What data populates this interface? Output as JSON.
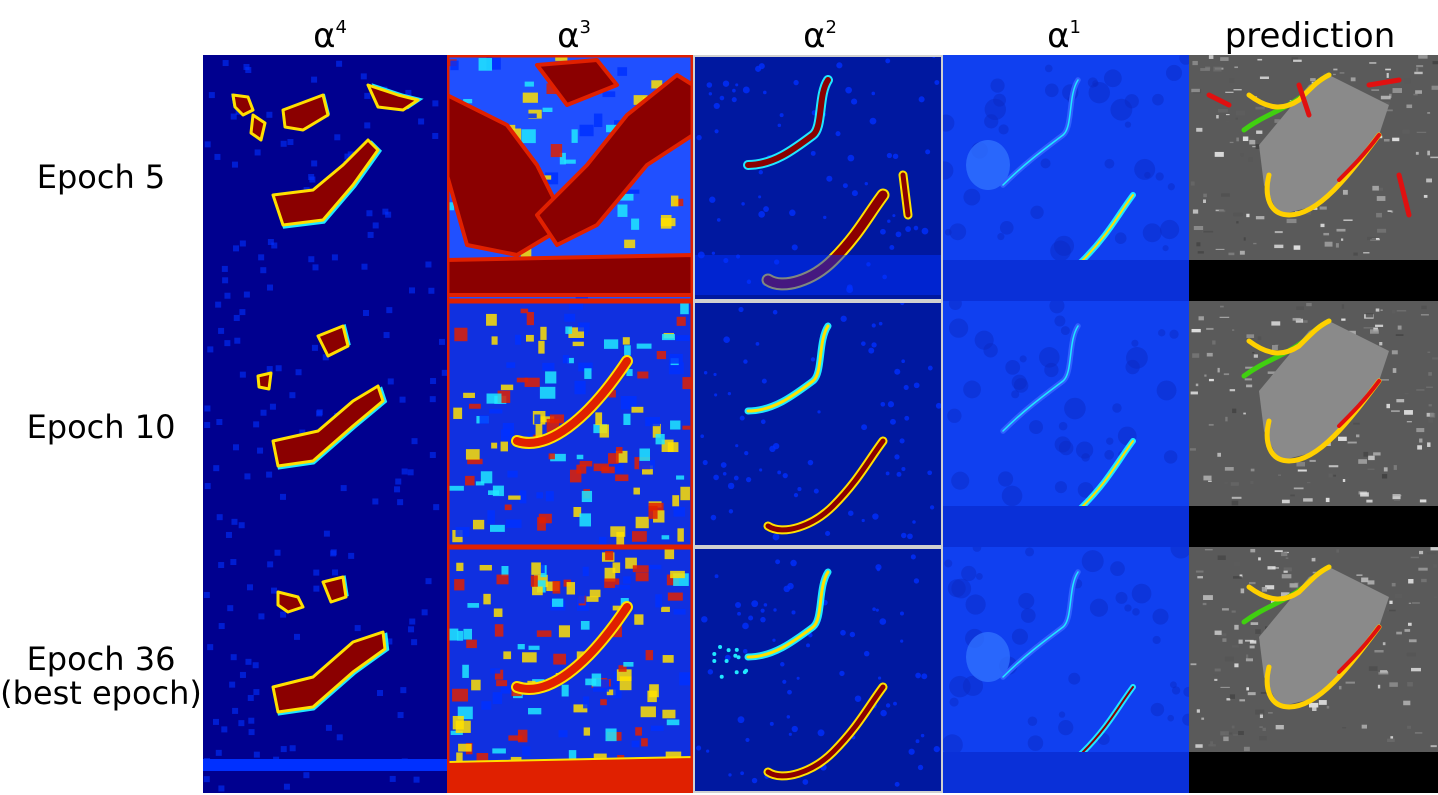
{
  "columns": [
    {
      "base": "α",
      "sup": "4"
    },
    {
      "base": "α",
      "sup": "3"
    },
    {
      "base": "α",
      "sup": "2"
    },
    {
      "base": "α",
      "sup": "1"
    },
    {
      "base": "prediction",
      "sup": ""
    }
  ],
  "rows": [
    {
      "label": "Epoch 5",
      "sublabel": ""
    },
    {
      "label": "Epoch 10",
      "sublabel": ""
    },
    {
      "label": "Epoch 36",
      "sublabel": "(best epoch)"
    }
  ],
  "colors": {
    "jet_bg": "#00008f",
    "jet_blue": "#0030ff",
    "jet_cyan": "#20e8ff",
    "jet_yellow": "#ffe000",
    "jet_red": "#e02000",
    "jet_darkred": "#8b0000",
    "pred_true": "#ffd000",
    "pred_wrong": "#e01010",
    "pred_gt": "#40d010"
  }
}
